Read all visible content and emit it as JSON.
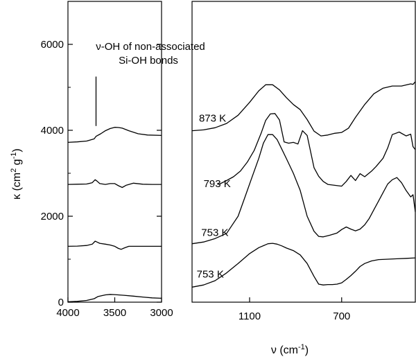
{
  "chart_data": [
    {
      "type": "line",
      "panel": "left",
      "xlim": [
        4000,
        3000
      ],
      "ylim": [
        0,
        7000
      ],
      "xticks": [
        "4000",
        "3500",
        "3000"
      ],
      "yticks": [
        "0",
        "2000",
        "4000",
        "6000"
      ],
      "ylabel_main": "κ (cm",
      "ylabel_sup1": "2",
      "ylabel_mid": " g",
      "ylabel_sup2": "-1",
      "ylabel_end": ")",
      "annotation_line1": "ν-OH of non-associated",
      "annotation_line2": "Si-OH bonds",
      "marker_x": 3700,
      "marker_y": [
        4100,
        5250
      ],
      "series": [
        {
          "x": [
            4000,
            3900,
            3800,
            3720,
            3700,
            3650,
            3600,
            3550,
            3500,
            3460,
            3420,
            3350,
            3250,
            3150,
            3000
          ],
          "y": [
            3720,
            3730,
            3750,
            3800,
            3860,
            3920,
            3990,
            4040,
            4070,
            4065,
            4050,
            3990,
            3920,
            3890,
            3880
          ]
        },
        {
          "x": [
            4000,
            3900,
            3800,
            3740,
            3710,
            3690,
            3660,
            3600,
            3550,
            3500,
            3460,
            3420,
            3380,
            3300,
            3200,
            3100,
            3000
          ],
          "y": [
            2740,
            2745,
            2750,
            2780,
            2850,
            2820,
            2760,
            2740,
            2760,
            2760,
            2710,
            2670,
            2720,
            2770,
            2745,
            2740,
            2740
          ]
        },
        {
          "x": [
            4000,
            3900,
            3800,
            3740,
            3710,
            3690,
            3660,
            3600,
            3550,
            3500,
            3460,
            3430,
            3400,
            3350,
            3250,
            3150,
            3000
          ],
          "y": [
            1300,
            1305,
            1320,
            1350,
            1420,
            1400,
            1370,
            1350,
            1330,
            1300,
            1250,
            1230,
            1260,
            1300,
            1300,
            1300,
            1300
          ]
        },
        {
          "x": [
            4000,
            3900,
            3800,
            3720,
            3680,
            3600,
            3550,
            3500,
            3400,
            3300,
            3200,
            3100,
            3000
          ],
          "y": [
            10,
            20,
            40,
            80,
            130,
            170,
            180,
            175,
            160,
            140,
            120,
            100,
            90
          ]
        }
      ]
    },
    {
      "type": "line",
      "panel": "right",
      "xlim": [
        1350,
        380
      ],
      "xticks": [
        "1100",
        "700"
      ],
      "xlabel_main": "ν  (cm",
      "xlabel_sup": "-1",
      "xlabel_end": ")",
      "series": [
        {
          "name": "873 K",
          "x": [
            1350,
            1300,
            1250,
            1200,
            1150,
            1100,
            1060,
            1030,
            1000,
            970,
            940,
            910,
            880,
            850,
            820,
            790,
            760,
            730,
            700,
            670,
            640,
            600,
            560,
            520,
            480,
            440,
            400,
            390,
            380
          ],
          "y": [
            3990,
            4010,
            4060,
            4160,
            4350,
            4650,
            4920,
            5060,
            5060,
            4940,
            4760,
            4600,
            4480,
            4250,
            3980,
            3870,
            3890,
            3930,
            3950,
            4050,
            4300,
            4600,
            4850,
            4980,
            5030,
            5030,
            5080,
            5070,
            5130
          ]
        },
        {
          "name": "793 K",
          "x": [
            1240,
            1230,
            1200,
            1170,
            1140,
            1110,
            1080,
            1050,
            1030,
            1010,
            990,
            970,
            950,
            930,
            910,
            890,
            870,
            850,
            820,
            800,
            780,
            760,
            730,
            700,
            680,
            660,
            640,
            620,
            600,
            570,
            550,
            520,
            500,
            480,
            450,
            420,
            400,
            390,
            380
          ],
          "y": [
            2740,
            2750,
            2830,
            2920,
            3050,
            3260,
            3530,
            3930,
            4230,
            4380,
            4390,
            4240,
            3730,
            3700,
            3720,
            3680,
            3990,
            3880,
            3130,
            2930,
            2810,
            2740,
            2720,
            2700,
            2810,
            2950,
            2830,
            2990,
            2920,
            3050,
            3160,
            3350,
            3590,
            3900,
            3960,
            3870,
            3910,
            3620,
            3550
          ]
        },
        {
          "name": "753 K",
          "x": [
            1350,
            1300,
            1250,
            1200,
            1150,
            1120,
            1090,
            1060,
            1040,
            1020,
            1000,
            980,
            960,
            940,
            910,
            880,
            850,
            820,
            800,
            780,
            750,
            720,
            700,
            680,
            660,
            640,
            620,
            600,
            580,
            560,
            540,
            520,
            500,
            480,
            460,
            440,
            420,
            400,
            390,
            380
          ],
          "y": [
            1360,
            1400,
            1480,
            1600,
            2000,
            2450,
            2900,
            3350,
            3700,
            3900,
            3900,
            3780,
            3560,
            3340,
            3000,
            2600,
            2000,
            1650,
            1530,
            1520,
            1560,
            1610,
            1690,
            1750,
            1700,
            1660,
            1700,
            1800,
            1950,
            2150,
            2350,
            2550,
            2750,
            2850,
            2900,
            2780,
            2600,
            2450,
            2500,
            2100
          ]
        },
        {
          "name": "753 K",
          "x": [
            1350,
            1300,
            1250,
            1200,
            1150,
            1100,
            1060,
            1020,
            1000,
            980,
            960,
            940,
            910,
            880,
            850,
            820,
            800,
            780,
            760,
            740,
            720,
            700,
            680,
            660,
            640,
            620,
            600,
            570,
            540,
            500,
            460,
            420,
            380
          ],
          "y": [
            350,
            400,
            500,
            680,
            900,
            1130,
            1270,
            1360,
            1370,
            1350,
            1310,
            1260,
            1200,
            1100,
            900,
            600,
            420,
            400,
            410,
            410,
            420,
            450,
            530,
            620,
            720,
            830,
            900,
            960,
            990,
            1000,
            1010,
            1020,
            1030
          ]
        }
      ]
    }
  ]
}
